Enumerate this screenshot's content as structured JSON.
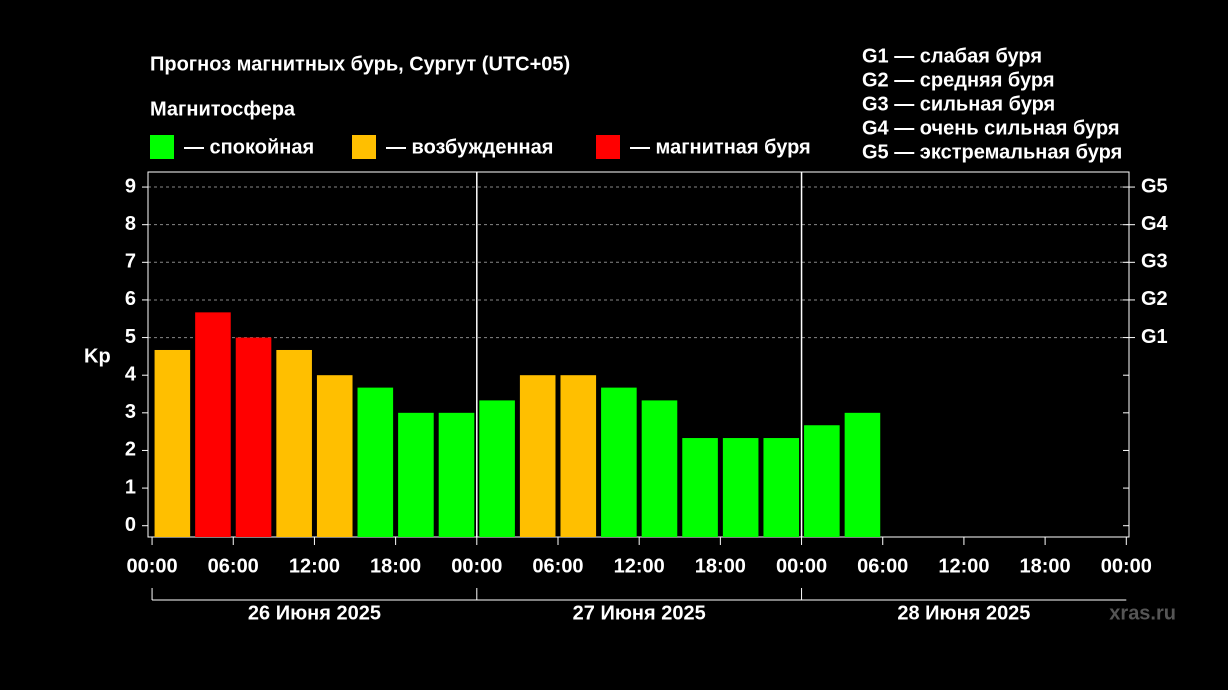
{
  "chart_data": {
    "type": "bar",
    "title": "Прогноз магнитных бурь, Сургут (UTC+05)",
    "legend_title": "Магнитосфера",
    "legend": [
      {
        "name": "— спокойная",
        "color": "#00ff00"
      },
      {
        "name": "— возбужденная",
        "color": "#ffbf00"
      },
      {
        "name": "— магнитная буря",
        "color": "#ff0000"
      }
    ],
    "storm_levels": [
      "G1 — слабая буря",
      "G2 — средняя буря",
      "G3 — сильная буря",
      "G4 — очень сильная буря",
      "G5 — экстремальная буря"
    ],
    "y_label": "Kp",
    "x": [
      1.5,
      4.5,
      7.5,
      10.5,
      13.5,
      16.5,
      19.5,
      22.5,
      25.5,
      28.5,
      31.5,
      34.5,
      37.5,
      40.5,
      43.5,
      46.5,
      49.5,
      52.5
    ],
    "bar_width": 3,
    "values": [
      4.67,
      5.67,
      5.0,
      4.67,
      4.0,
      3.67,
      3.0,
      3.0,
      3.33,
      4.0,
      4.0,
      3.67,
      3.33,
      2.33,
      2.33,
      2.33,
      2.67,
      3.0
    ],
    "colors": [
      "#ffbf00",
      "#ff0000",
      "#ff0000",
      "#ffbf00",
      "#ffbf00",
      "#00ff00",
      "#00ff00",
      "#00ff00",
      "#00ff00",
      "#ffbf00",
      "#ffbf00",
      "#00ff00",
      "#00ff00",
      "#00ff00",
      "#00ff00",
      "#00ff00",
      "#00ff00",
      "#00ff00"
    ],
    "xlim": [
      -0.3,
      72.2
    ],
    "xticks": [
      {
        "value": 0,
        "label": "00:00"
      },
      {
        "value": 6,
        "label": "06:00"
      },
      {
        "value": 12,
        "label": "12:00"
      },
      {
        "value": 18,
        "label": "18:00"
      },
      {
        "value": 24,
        "label": "00:00"
      },
      {
        "value": 30,
        "label": "06:00"
      },
      {
        "value": 36,
        "label": "12:00"
      },
      {
        "value": 42,
        "label": "18:00"
      },
      {
        "value": 48,
        "label": "00:00"
      },
      {
        "value": 54,
        "label": "06:00"
      },
      {
        "value": 60,
        "label": "12:00"
      },
      {
        "value": 66,
        "label": "18:00"
      },
      {
        "value": 72,
        "label": "00:00"
      }
    ],
    "days": [
      "26 Июня 2025",
      "27 Июня 2025",
      "28 Июня 2025"
    ],
    "ylim": [
      -0.3,
      9.4
    ],
    "yticks": [
      0,
      1,
      2,
      3,
      4,
      5,
      6,
      7,
      8,
      9
    ],
    "y2lim": [
      -0.3,
      9.4
    ],
    "y2ticks": [
      {
        "value": 5,
        "label": "G1"
      },
      {
        "value": 6,
        "label": "G2"
      },
      {
        "value": 7,
        "label": "G3"
      },
      {
        "value": 8,
        "label": "G4"
      },
      {
        "value": 9,
        "label": "G5"
      }
    ],
    "watermark": "xras.ru"
  }
}
